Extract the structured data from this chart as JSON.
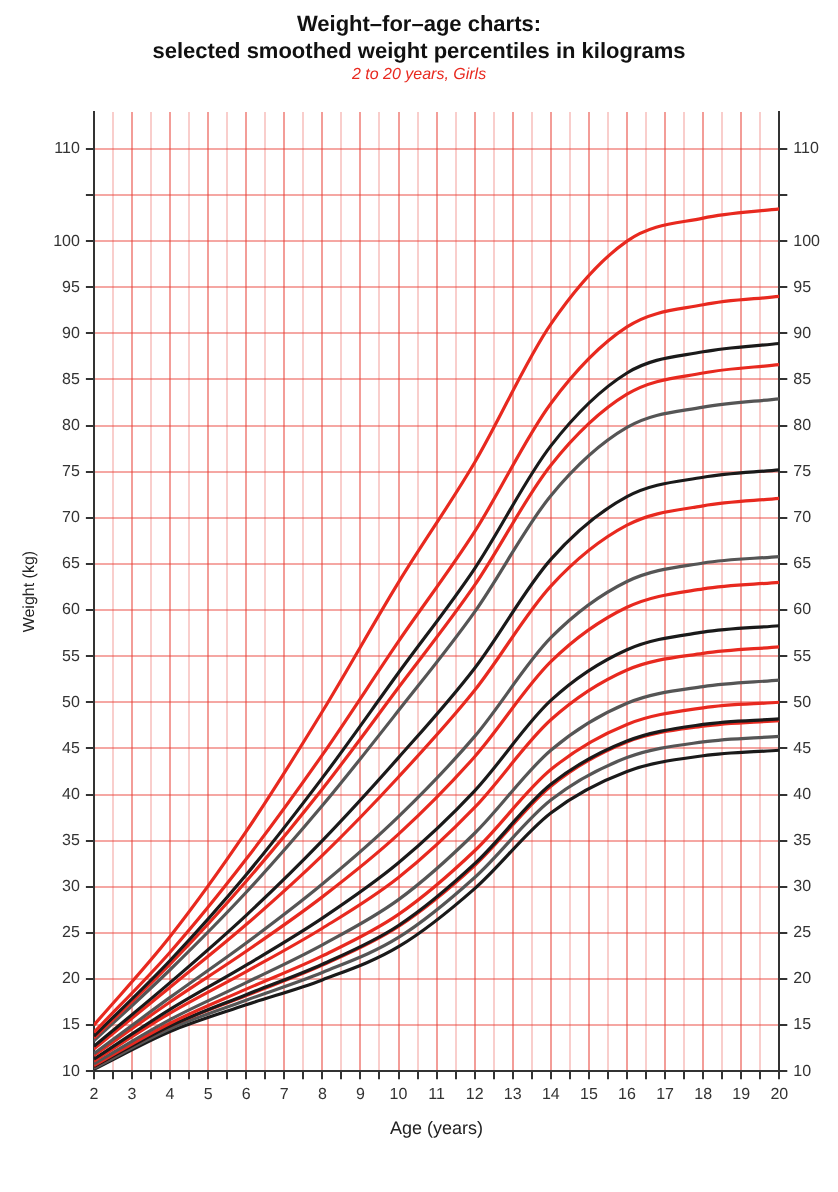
{
  "chart_data": {
    "type": "line",
    "title": "Weight–for–age charts:\nselected smoothed weight percentiles in kilograms",
    "subtitle": "2 to 20 years, Girls",
    "xlabel": "Age (years)",
    "ylabel": "Weight (kg)",
    "x": [
      2,
      4,
      6,
      8,
      10,
      12,
      14,
      16,
      18,
      20
    ],
    "series": [
      {
        "color": "#e8291f",
        "values": [
          15,
          24.6,
          36,
          49,
          63,
          76,
          91,
          100,
          102.5,
          103.5
        ]
      },
      {
        "color": "#e8291f",
        "values": [
          14.2,
          22.9,
          33.0,
          44.3,
          56.6,
          68.5,
          82.4,
          90.7,
          93.1,
          94.0
        ]
      },
      {
        "color": "#1a1a1a",
        "values": [
          13.8,
          22.0,
          31.3,
          41.8,
          53.2,
          64.5,
          77.8,
          85.7,
          88.0,
          88.9
        ]
      },
      {
        "color": "#e8291f",
        "values": [
          13.6,
          21.6,
          30.6,
          40.6,
          51.6,
          62.7,
          75.7,
          83.4,
          85.7,
          86.6
        ]
      },
      {
        "color": "#555555",
        "values": [
          13.3,
          21.0,
          29.4,
          38.8,
          49.1,
          59.8,
          72.4,
          79.8,
          82.0,
          82.9
        ]
      },
      {
        "color": "#1a1a1a",
        "values": [
          12.7,
          19.6,
          26.9,
          35.0,
          44.0,
          53.7,
          65.5,
          72.3,
          74.4,
          75.2
        ]
      },
      {
        "color": "#e8291f",
        "values": [
          12.4,
          19.1,
          25.9,
          33.4,
          41.9,
          51.3,
          62.6,
          69.2,
          71.3,
          72.1
        ]
      },
      {
        "color": "#555555",
        "values": [
          11.9,
          18.0,
          23.9,
          30.3,
          37.6,
          46.3,
          57.0,
          63.1,
          65.1,
          65.8
        ]
      },
      {
        "color": "#e8291f",
        "values": [
          11.7,
          17.5,
          23.0,
          28.9,
          35.7,
          44.1,
          54.4,
          60.3,
          62.3,
          63.0
        ]
      },
      {
        "color": "#1a1a1a",
        "values": [
          11.3,
          16.7,
          21.5,
          26.6,
          32.6,
          40.4,
          50.2,
          55.7,
          57.6,
          58.3
        ]
      },
      {
        "color": "#e8291f",
        "values": [
          11.1,
          16.3,
          20.8,
          25.5,
          31.0,
          38.6,
          48.1,
          53.5,
          55.3,
          56.0
        ]
      },
      {
        "color": "#555555",
        "values": [
          10.8,
          15.6,
          19.6,
          23.7,
          28.6,
          35.8,
          44.8,
          49.9,
          51.7,
          52.4
        ]
      },
      {
        "color": "#e8291f",
        "values": [
          10.6,
          15.2,
          18.9,
          22.5,
          27.0,
          33.9,
          42.7,
          47.6,
          49.4,
          50.0
        ]
      },
      {
        "color": "#1a1a1a",
        "values": [
          10.5,
          14.9,
          18.3,
          21.6,
          25.8,
          32.5,
          41.1,
          45.8,
          47.6,
          48.2
        ]
      },
      {
        "color": "#e8291f",
        "values": [
          10.5,
          14.9,
          18.2,
          21.5,
          25.7,
          32.3,
          40.9,
          45.7,
          47.4,
          48.0
        ]
      },
      {
        "color": "#555555",
        "values": [
          10.3,
          14.6,
          17.7,
          20.7,
          24.5,
          31.0,
          39.4,
          44.0,
          45.7,
          46.3
        ]
      },
      {
        "color": "#1a1a1a",
        "values": [
          10.2,
          14.3,
          17.2,
          19.9,
          23.5,
          29.8,
          38.0,
          42.5,
          44.2,
          44.8
        ]
      }
    ],
    "xlim": [
      2,
      20
    ],
    "xticks": [
      2,
      {
        "value": 2.5,
        "label": null
      },
      3,
      {
        "value": 3.5,
        "label": null
      },
      4,
      {
        "value": 4.5,
        "label": null
      },
      5,
      {
        "value": 5.5,
        "label": null
      },
      6,
      {
        "value": 6.5,
        "label": null
      },
      7,
      {
        "value": 7.5,
        "label": null
      },
      8,
      {
        "value": 8.5,
        "label": null
      },
      9,
      {
        "value": 9.5,
        "label": null
      },
      10,
      {
        "value": 10.5,
        "label": null
      },
      11,
      {
        "value": 11.5,
        "label": null
      },
      12,
      {
        "value": 12.5,
        "label": null
      },
      13,
      {
        "value": 13.5,
        "label": null
      },
      14,
      {
        "value": 14.5,
        "label": null
      },
      15,
      {
        "value": 15.5,
        "label": null
      },
      16,
      {
        "value": 16.5,
        "label": null
      },
      17,
      {
        "value": 17.5,
        "label": null
      },
      18,
      {
        "value": 18.5,
        "label": null
      },
      19,
      {
        "value": 19.5,
        "label": null
      },
      20
    ],
    "ylim": [
      10,
      114
    ],
    "yticks": [
      10,
      15,
      20,
      25,
      30,
      35,
      40,
      45,
      50,
      55,
      60,
      65,
      70,
      75,
      80,
      85,
      90,
      95,
      100,
      {
        "value": 105,
        "label": null
      },
      110
    ],
    "y2lim": [
      10,
      114
    ],
    "y2ticks": [
      10,
      15,
      20,
      25,
      30,
      35,
      40,
      45,
      50,
      55,
      60,
      65,
      70,
      75,
      80,
      85,
      90,
      95,
      100,
      {
        "value": 105,
        "label": null
      },
      110
    ],
    "grid": true,
    "marker": "none",
    "line_style": "solid",
    "legend": false
  }
}
